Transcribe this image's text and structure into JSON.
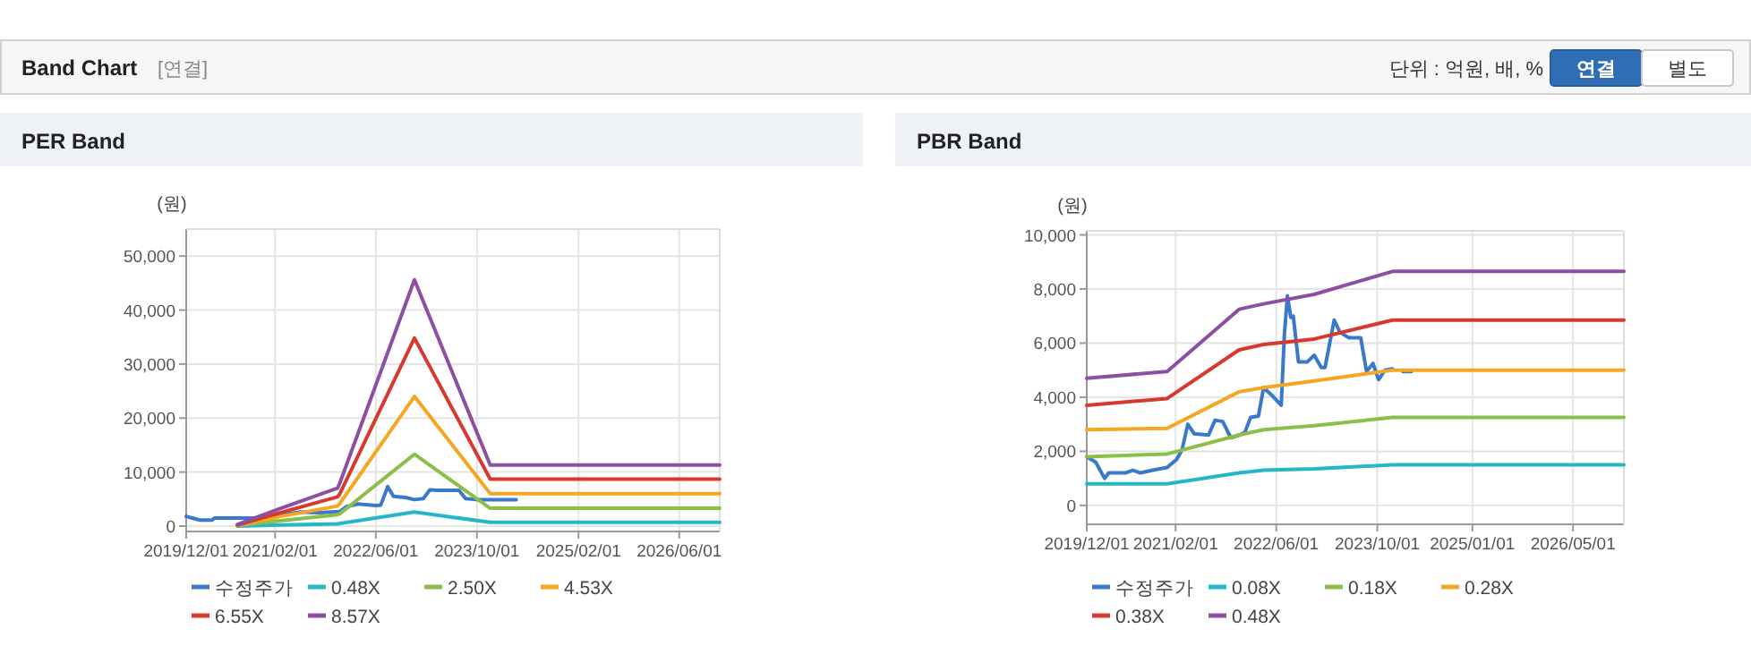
{
  "chart_data": [
    {
      "type": "other",
      "title": "Band Chart",
      "subtitle": "[연결]",
      "annotations": [
        "단위 : 억원, 배, %",
        "연결",
        "별도"
      ]
    },
    {
      "type": "line",
      "title": "PER Band",
      "ylabel": "(원)",
      "grid": true,
      "legend": "bottom",
      "xlim": [
        "2019-12-01",
        "2026-12-13"
      ],
      "ylim": [
        -1000,
        55000
      ],
      "xticks": [
        {
          "value": "2019-12-01",
          "label": "2019/12/01"
        },
        {
          "value": "2021-02-01",
          "label": "2021/02/01"
        },
        {
          "value": "2022-06-01",
          "label": "2022/06/01"
        },
        {
          "value": "2023-10-01",
          "label": "2023/10/01"
        },
        {
          "value": "2025-02-01",
          "label": "2025/02/01"
        },
        {
          "value": "2026-06-01",
          "label": "2026/06/01"
        }
      ],
      "yticks": [
        0,
        {
          "value": 10000,
          "label": "10,000"
        },
        {
          "value": 20000,
          "label": "20,000"
        },
        {
          "value": 30000,
          "label": "30,000"
        },
        {
          "value": 40000,
          "label": "40,000"
        },
        {
          "value": 50000,
          "label": "50,000"
        }
      ],
      "series": [
        {
          "name": "수정주가",
          "color": "#3a78c9",
          "x": [
            "2019-12-01",
            "2020-01-07",
            "2020-02-06",
            "2020-04-03",
            "2020-04-15",
            "2020-07-25",
            "2020-12-01",
            "2021-06-01",
            "2021-09-01",
            "2021-12-10",
            "2022-01-10",
            "2022-03-07",
            "2022-06-01",
            "2022-06-25",
            "2022-07-28",
            "2022-08-25",
            "2022-10-22",
            "2022-12-04",
            "2023-01-16",
            "2023-02-16",
            "2023-03-28",
            "2023-07-07",
            "2023-08-07",
            "2023-10-01",
            "2024-04-07"
          ],
          "values": [
            1800,
            1400,
            1100,
            1100,
            1500,
            1500,
            1500,
            2600,
            2500,
            2700,
            3600,
            4100,
            3800,
            3900,
            7300,
            5500,
            5300,
            4900,
            5100,
            6700,
            6600,
            6600,
            5100,
            4900,
            4900
          ]
        },
        {
          "name": "0.48X",
          "color": "#22b8c8",
          "x": [
            "2020-08-04",
            "2021-02-28",
            "2021-11-28",
            "2021-12-10",
            "2022-12-04",
            "2023-12-04",
            "2026-12-13"
          ],
          "values": [
            0,
            200,
            400,
            500,
            2600,
            700,
            700
          ]
        },
        {
          "name": "2.50X",
          "color": "#8cbf4a",
          "x": [
            "2020-08-04",
            "2021-02-28",
            "2021-11-28",
            "2021-12-10",
            "2022-12-04",
            "2023-12-04",
            "2026-12-13"
          ],
          "values": [
            100,
            1000,
            2100,
            2300,
            13300,
            3300,
            3300
          ]
        },
        {
          "name": "4.53X",
          "color": "#f5a623",
          "x": [
            "2020-08-04",
            "2021-02-28",
            "2021-11-28",
            "2021-12-10",
            "2022-12-04",
            "2023-12-04",
            "2026-12-13"
          ],
          "values": [
            100,
            1800,
            3700,
            4200,
            24000,
            6000,
            6000
          ]
        },
        {
          "name": "6.55X",
          "color": "#d63a2f",
          "x": [
            "2020-08-04",
            "2021-02-28",
            "2021-11-28",
            "2021-12-10",
            "2022-12-04",
            "2023-12-04",
            "2026-12-13"
          ],
          "values": [
            200,
            2500,
            5400,
            6000,
            34800,
            8700,
            8700
          ]
        },
        {
          "name": "8.57X",
          "color": "#8e4fa3",
          "x": [
            "2020-08-04",
            "2021-02-28",
            "2021-11-28",
            "2021-12-10",
            "2022-12-04",
            "2023-12-04",
            "2026-12-13"
          ],
          "values": [
            300,
            3300,
            7000,
            8000,
            45600,
            11300,
            11300
          ]
        }
      ]
    },
    {
      "type": "line",
      "title": "PBR Band",
      "ylabel": "(원)",
      "grid": true,
      "legend": "bottom",
      "xlim": [
        "2019-12-01",
        "2027-01-01"
      ],
      "ylim": [
        -700,
        10150
      ],
      "xticks": [
        {
          "value": "2019-12-01",
          "label": "2019/12/01"
        },
        {
          "value": "2021-02-01",
          "label": "2021/02/01"
        },
        {
          "value": "2022-06-01",
          "label": "2022/06/01"
        },
        {
          "value": "2023-10-01",
          "label": "2023/10/01"
        },
        {
          "value": "2025-01-01",
          "label": "2025/01/01"
        },
        {
          "value": "2026-05-01",
          "label": "2026/05/01"
        }
      ],
      "yticks": [
        0,
        {
          "value": 2000,
          "label": "2,000"
        },
        {
          "value": 4000,
          "label": "4,000"
        },
        {
          "value": 6000,
          "label": "6,000"
        },
        {
          "value": 8000,
          "label": "8,000"
        },
        {
          "value": 10000,
          "label": "10,000"
        }
      ],
      "series": [
        {
          "name": "수정주가",
          "color": "#3a78c9",
          "x": [
            "2019-12-01",
            "2020-01-13",
            "2020-02-25",
            "2020-03-16",
            "2020-06-04",
            "2020-07-10",
            "2020-08-16",
            "2020-10-13",
            "2020-12-22",
            "2021-02-06",
            "2021-03-04",
            "2021-04-01",
            "2021-05-01",
            "2021-07-10",
            "2021-08-10",
            "2021-09-16",
            "2021-10-25",
            "2021-12-04",
            "2022-01-01",
            "2022-01-28",
            "2022-03-07",
            "2022-04-01",
            "2022-05-07",
            "2022-06-25",
            "2022-07-10",
            "2022-07-25",
            "2022-08-10",
            "2022-08-22",
            "2022-09-16",
            "2022-10-28",
            "2022-12-01",
            "2023-01-04",
            "2023-01-22",
            "2023-03-07",
            "2023-04-04",
            "2023-05-16",
            "2023-07-13",
            "2023-08-10",
            "2023-09-10",
            "2023-10-07",
            "2023-11-07",
            "2023-12-13",
            "2024-01-10",
            "2024-02-01",
            "2024-03-13"
          ],
          "values": [
            1800,
            1600,
            1000,
            1200,
            1200,
            1300,
            1200,
            1300,
            1400,
            1700,
            2050,
            3000,
            2650,
            2600,
            3150,
            3100,
            2500,
            2600,
            2700,
            3250,
            3300,
            4350,
            4100,
            3700,
            6300,
            7750,
            6950,
            7000,
            5300,
            5300,
            5550,
            5100,
            5100,
            6850,
            6400,
            6200,
            6200,
            4950,
            5250,
            4650,
            5000,
            5050,
            null,
            4950,
            4950
          ]
        },
        {
          "name": "0.08X",
          "color": "#22b8c8",
          "x": [
            "2019-12-01",
            "2020-12-22",
            "2021-12-04",
            "2022-04-01",
            "2022-12-01",
            "2023-12-13",
            "2027-01-01"
          ],
          "values": [
            800,
            800,
            1200,
            1300,
            1350,
            1500,
            1500
          ]
        },
        {
          "name": "0.18X",
          "color": "#8cbf4a",
          "x": [
            "2019-12-01",
            "2020-12-22",
            "2021-12-04",
            "2022-04-01",
            "2022-12-01",
            "2023-12-13",
            "2027-01-01"
          ],
          "values": [
            1800,
            1900,
            2600,
            2800,
            2950,
            3250,
            3250
          ]
        },
        {
          "name": "0.28X",
          "color": "#f5a623",
          "x": [
            "2019-12-01",
            "2020-12-22",
            "2021-12-04",
            "2022-04-01",
            "2022-12-01",
            "2023-12-13",
            "2027-01-01"
          ],
          "values": [
            2800,
            2850,
            4200,
            4350,
            4600,
            5000,
            5000
          ]
        },
        {
          "name": "0.38X",
          "color": "#d63a2f",
          "x": [
            "2019-12-01",
            "2020-12-22",
            "2021-12-04",
            "2022-04-01",
            "2022-12-01",
            "2023-12-13",
            "2027-01-01"
          ],
          "values": [
            3700,
            3950,
            5750,
            5950,
            6150,
            6850,
            6850
          ]
        },
        {
          "name": "0.48X",
          "color": "#8e4fa3",
          "x": [
            "2019-12-01",
            "2020-12-22",
            "2021-12-04",
            "2022-04-01",
            "2022-12-01",
            "2023-12-13",
            "2027-01-01"
          ],
          "values": [
            4700,
            4950,
            7250,
            7450,
            7800,
            8650,
            8650
          ]
        }
      ]
    }
  ]
}
